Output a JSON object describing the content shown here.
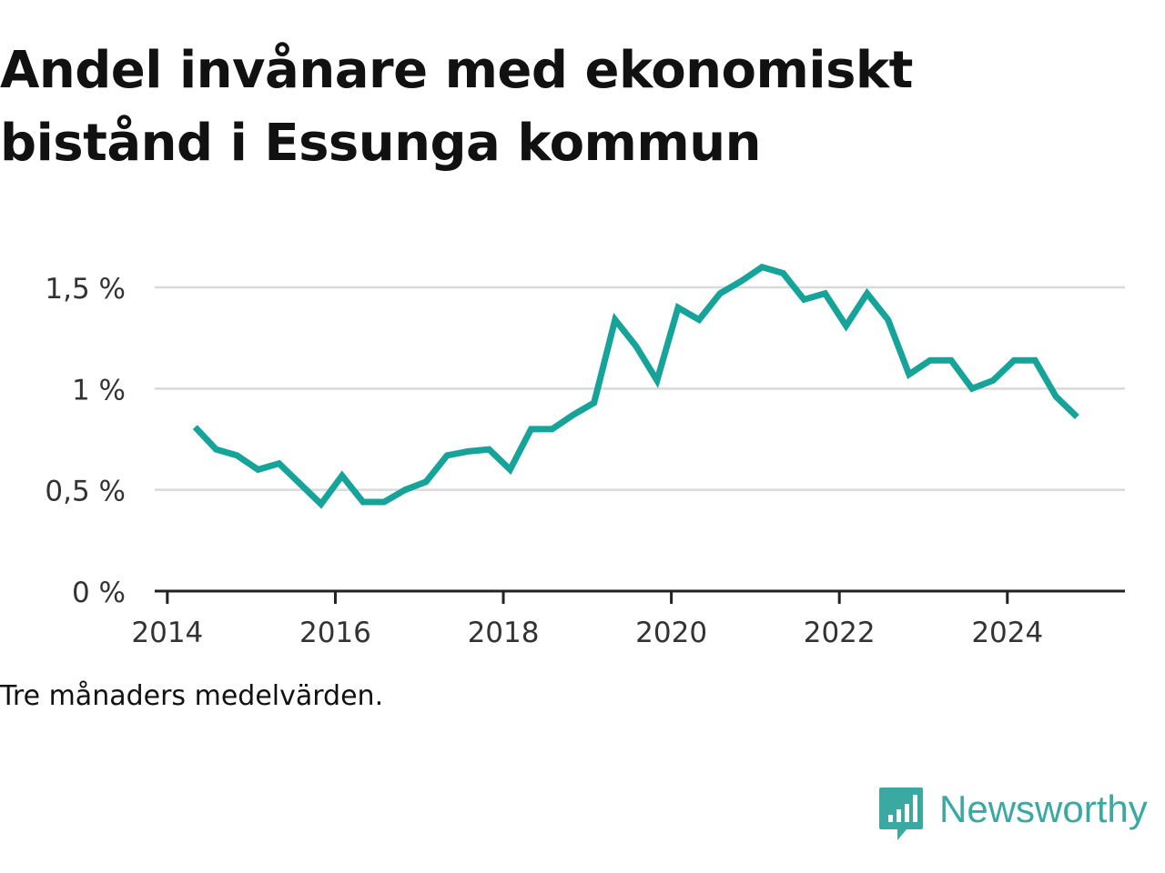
{
  "title": "Andel invånare med ekonomiskt bistånd i Essunga kommun",
  "footnote": "Tre månaders medelvärden.",
  "brand": {
    "name": "Newsworthy",
    "color": "#3aa9a2",
    "icon": "bar-chart-speech-bubble-icon"
  },
  "colors": {
    "line": "#16a39a",
    "grid": "#d9d9d9",
    "axis": "#222222",
    "text": "#333333"
  },
  "chart_data": {
    "type": "line",
    "title": "Andel invånare med ekonomiskt bistånd i Essunga kommun",
    "xlabel": "",
    "ylabel": "",
    "x_ticks": [
      2014,
      2016,
      2018,
      2020,
      2022,
      2024
    ],
    "y_ticks": [
      0,
      0.5,
      1,
      1.5
    ],
    "y_tick_labels": [
      "0 %",
      "0,5 %",
      "1 %",
      "1,5 %"
    ],
    "xlim": [
      2013.85,
      2025.4
    ],
    "ylim": [
      0,
      1.5
    ],
    "grid": true,
    "series": [
      {
        "x": [
          2014.33,
          2014.58,
          2014.83,
          2015.08,
          2015.33,
          2015.58,
          2015.83,
          2016.08,
          2016.33,
          2016.58,
          2016.83,
          2017.08,
          2017.33,
          2017.58,
          2017.83,
          2018.08,
          2018.33,
          2018.58,
          2018.83,
          2019.08,
          2019.33,
          2019.58,
          2019.83,
          2020.08,
          2020.33,
          2020.58,
          2020.83,
          2021.08,
          2021.33,
          2021.58,
          2021.83,
          2022.08,
          2022.33,
          2022.58,
          2022.83,
          2023.08,
          2023.33,
          2023.58,
          2023.83,
          2024.08,
          2024.33,
          2024.58,
          2024.83
        ],
        "values": [
          0.81,
          0.7,
          0.67,
          0.6,
          0.63,
          0.53,
          0.43,
          0.57,
          0.44,
          0.44,
          0.5,
          0.54,
          0.67,
          0.69,
          0.7,
          0.6,
          0.8,
          0.8,
          0.87,
          0.93,
          1.34,
          1.21,
          1.04,
          1.4,
          1.34,
          1.47,
          1.53,
          1.6,
          1.57,
          1.44,
          1.47,
          1.31,
          1.47,
          1.34,
          1.07,
          1.14,
          1.14,
          1.0,
          1.04,
          1.14,
          1.14,
          0.96,
          0.86
        ]
      }
    ]
  }
}
